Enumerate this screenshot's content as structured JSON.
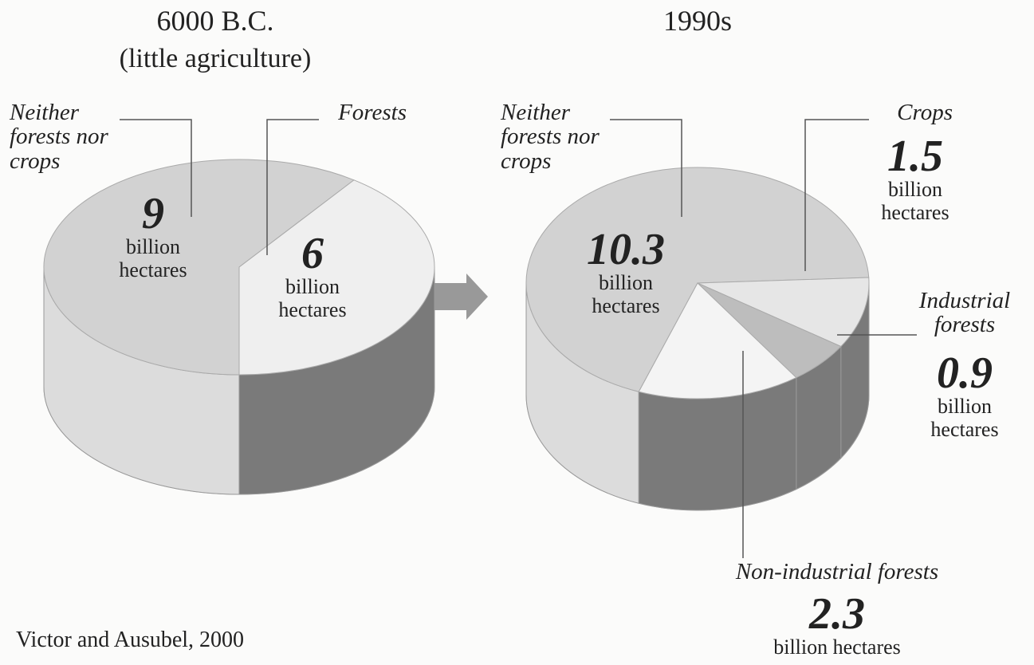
{
  "chart_data": [
    {
      "type": "pie",
      "title": "6000 B.C.",
      "subtitle": "(little agriculture)",
      "categories": [
        "Neither forests nor crops",
        "Forests"
      ],
      "values": [
        9,
        6
      ],
      "unit": "billion hectares",
      "colors": [
        "#d2d2d2",
        "#efefef"
      ]
    },
    {
      "type": "pie",
      "title": "1990s",
      "categories": [
        "Neither forests nor crops",
        "Crops",
        "Industrial forests",
        "Non-industrial forests"
      ],
      "values": [
        10.3,
        1.5,
        0.9,
        2.3
      ],
      "unit": "billion hectares",
      "colors": [
        "#d2d2d2",
        "#e6e6e6",
        "#bdbdbd",
        "#f4f4f4"
      ]
    }
  ],
  "source": "Victor and Ausubel, 2000"
}
